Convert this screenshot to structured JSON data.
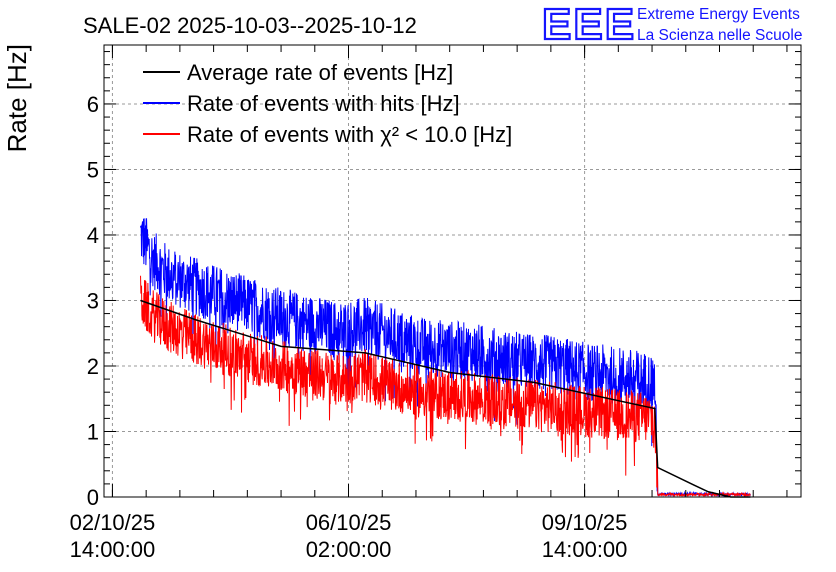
{
  "title": "SALE-02 2025-10-03--2025-10-12",
  "brand": {
    "logo": "EEE",
    "line1": "Extreme Energy Events",
    "line2": "La Scienza nelle Scuole",
    "color": "#1515ff"
  },
  "chart_data": {
    "type": "line",
    "ylabel": "Rate [Hz]",
    "xlabel": "",
    "ylim": [
      0,
      6.9
    ],
    "y_ticks": [
      0,
      1,
      2,
      3,
      4,
      5,
      6
    ],
    "x_unit": "hours since 02/10/25 14:00:00",
    "xlim": [
      -3,
      245
    ],
    "x_ticks": [
      {
        "x": 0,
        "date": "02/10/25",
        "time": "14:00:00"
      },
      {
        "x": 84,
        "date": "06/10/25",
        "time": "02:00:00"
      },
      {
        "x": 168,
        "date": "09/10/25",
        "time": "14:00:00"
      }
    ],
    "grid": true,
    "legend_position": "top-left",
    "series": [
      {
        "name": "Average rate of events [Hz]",
        "color": "#000000",
        "points": [
          [
            10,
            3.0
          ],
          [
            30,
            2.7
          ],
          [
            60,
            2.3
          ],
          [
            90,
            2.2
          ],
          [
            120,
            1.9
          ],
          [
            150,
            1.75
          ],
          [
            193,
            1.35
          ],
          [
            194,
            0.45
          ],
          [
            207,
            0.18
          ],
          [
            212,
            0.08
          ],
          [
            220,
            0.0
          ],
          [
            227,
            0.0
          ]
        ]
      },
      {
        "name": "Rate of events with hits [Hz]",
        "color": "#0000ff",
        "points": [
          [
            10,
            4.0
          ],
          [
            15,
            3.6
          ],
          [
            20,
            3.4
          ],
          [
            30,
            3.2
          ],
          [
            40,
            3.05
          ],
          [
            50,
            2.9
          ],
          [
            60,
            2.75
          ],
          [
            70,
            2.65
          ],
          [
            80,
            2.55
          ],
          [
            90,
            2.6
          ],
          [
            100,
            2.45
          ],
          [
            110,
            2.3
          ],
          [
            120,
            2.25
          ],
          [
            130,
            2.2
          ],
          [
            140,
            2.1
          ],
          [
            150,
            2.05
          ],
          [
            160,
            2.0
          ],
          [
            170,
            1.9
          ],
          [
            180,
            1.85
          ],
          [
            193,
            1.75
          ],
          [
            194,
            0.02
          ],
          [
            205,
            0.03
          ],
          [
            215,
            0.02
          ],
          [
            227,
            0.02
          ]
        ],
        "spread": 0.45
      },
      {
        "name": "Rate of events with χ² < 10.0 [Hz]",
        "color": "#ff0000",
        "points": [
          [
            10,
            3.0
          ],
          [
            15,
            2.75
          ],
          [
            20,
            2.6
          ],
          [
            30,
            2.4
          ],
          [
            40,
            2.25
          ],
          [
            50,
            2.1
          ],
          [
            60,
            2.0
          ],
          [
            70,
            1.9
          ],
          [
            80,
            1.8
          ],
          [
            90,
            1.85
          ],
          [
            100,
            1.7
          ],
          [
            110,
            1.6
          ],
          [
            120,
            1.55
          ],
          [
            130,
            1.5
          ],
          [
            140,
            1.45
          ],
          [
            150,
            1.4
          ],
          [
            160,
            1.35
          ],
          [
            170,
            1.3
          ],
          [
            180,
            1.25
          ],
          [
            193,
            1.2
          ],
          [
            194,
            0.02
          ],
          [
            205,
            0.02
          ],
          [
            215,
            0.02
          ],
          [
            227,
            0.02
          ]
        ],
        "spread": 0.4
      }
    ]
  }
}
